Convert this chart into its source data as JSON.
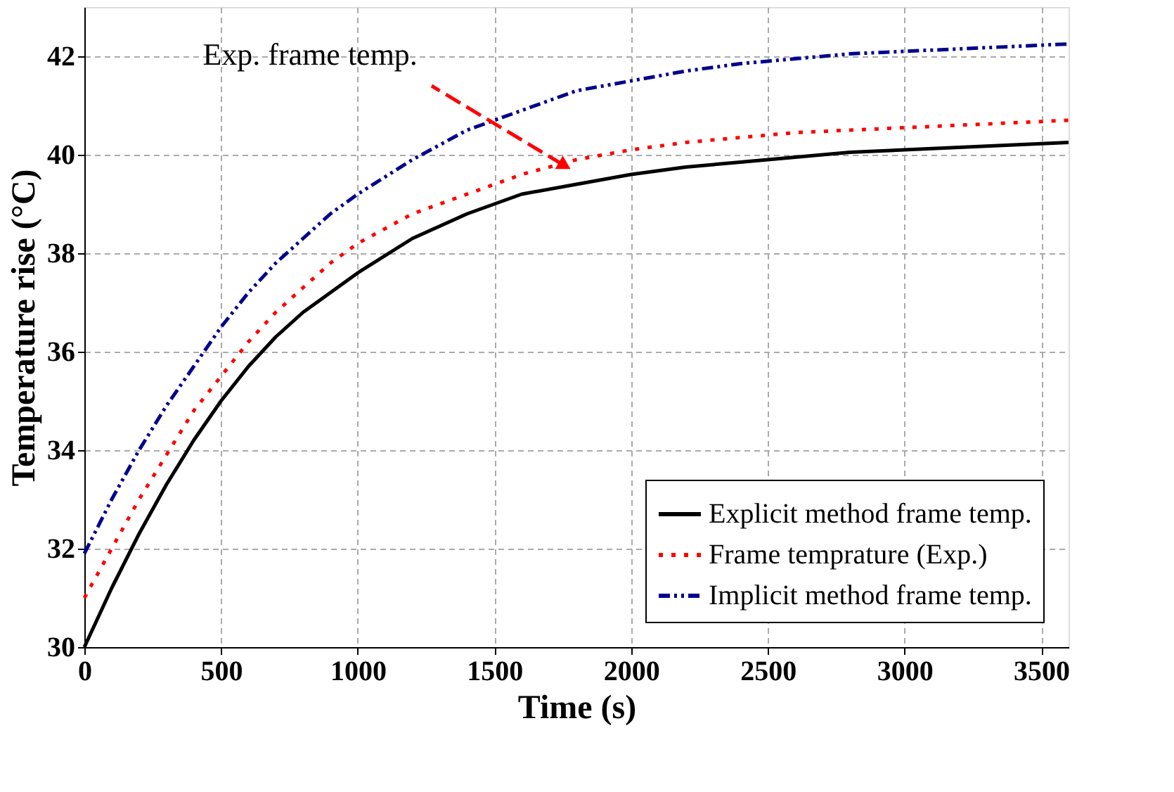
{
  "chart_data": {
    "type": "line",
    "xlabel": "Time (s)",
    "ylabel": "Temperature rise (°C)",
    "xlim": [
      0,
      3600
    ],
    "ylim": [
      30,
      43
    ],
    "xticks": [
      0,
      500,
      1000,
      1500,
      2000,
      2500,
      3000,
      3500
    ],
    "yticks": [
      30,
      32,
      34,
      36,
      38,
      40,
      42
    ],
    "grid": true,
    "legend": "bottom right",
    "marker": "none",
    "x": [
      0,
      100,
      200,
      300,
      400,
      500,
      600,
      700,
      800,
      900,
      1000,
      1200,
      1400,
      1600,
      1800,
      2000,
      2200,
      2400,
      2600,
      2800,
      3000,
      3200,
      3400,
      3600
    ],
    "series": [
      {
        "name": "Explicit method frame temp.",
        "color": "#000000",
        "line_style": "solid",
        "values": [
          30,
          31.2,
          32.3,
          33.3,
          34.2,
          35.0,
          35.7,
          36.3,
          36.8,
          37.2,
          37.6,
          38.3,
          38.8,
          39.2,
          39.4,
          39.6,
          39.75,
          39.85,
          39.95,
          40.05,
          40.1,
          40.15,
          40.2,
          40.25
        ]
      },
      {
        "name": "Frame temprature (Exp.)",
        "color": "#ff0000",
        "line_style": "dotted",
        "values": [
          31,
          32.0,
          33.0,
          33.9,
          34.8,
          35.5,
          36.2,
          36.8,
          37.3,
          37.8,
          38.2,
          38.8,
          39.2,
          39.6,
          39.9,
          40.1,
          40.25,
          40.35,
          40.45,
          40.5,
          40.55,
          40.6,
          40.65,
          40.7
        ]
      },
      {
        "name": "Implicit method frame temp.",
        "color": "#00008b",
        "line_style": "dashed",
        "values": [
          31.9,
          33.0,
          34.0,
          34.9,
          35.7,
          36.5,
          37.2,
          37.8,
          38.3,
          38.8,
          39.2,
          39.9,
          40.5,
          40.9,
          41.3,
          41.5,
          41.7,
          41.85,
          41.95,
          42.05,
          42.1,
          42.15,
          42.2,
          42.25
        ]
      }
    ],
    "annotations": [
      {
        "text": "Exp. frame temp.",
        "x": 1750,
        "y": 39.8
      }
    ]
  }
}
